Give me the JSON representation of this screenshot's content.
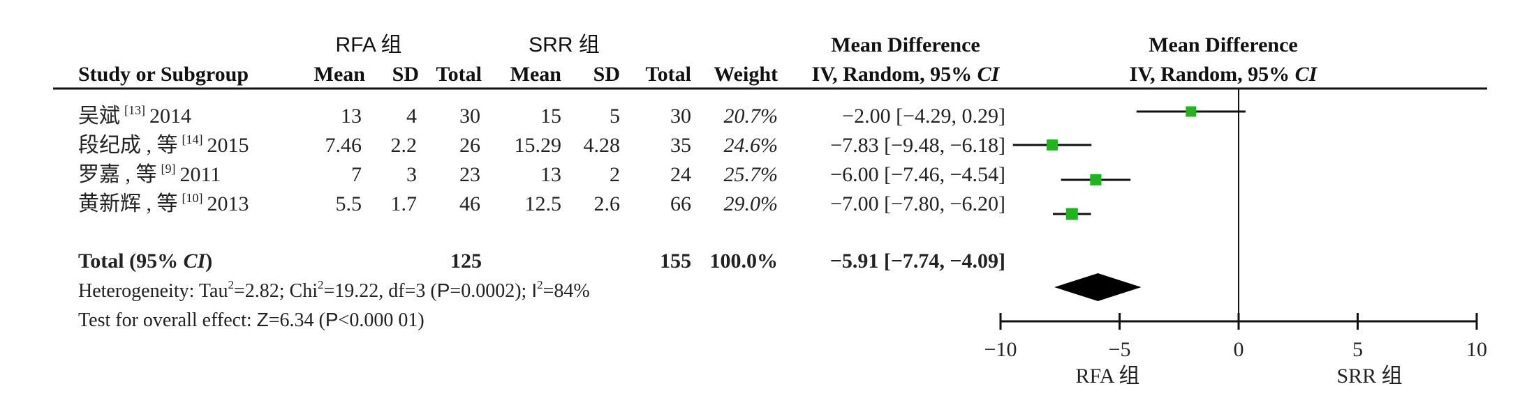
{
  "header": {
    "group1": "RFA 组",
    "group2": "SRR 组",
    "md_title": "Mean Difference",
    "md_sub_a": "IV, Random, 95% ",
    "md_sub_b": "CI",
    "plot_title": "Mean Difference",
    "plot_sub_a": "IV, Random, 95% ",
    "plot_sub_b": "CI",
    "study_col": "Study or Subgroup",
    "mean1": "Mean",
    "sd1": "SD",
    "total1": "Total",
    "mean2": "Mean",
    "sd2": "SD",
    "total2": "Total",
    "weight": "Weight"
  },
  "studies": [
    {
      "name": "吴斌",
      "ref": "[13]",
      "year": "2014",
      "mean1": "13",
      "sd1": "4",
      "total1": "30",
      "mean2": "15",
      "sd2": "5",
      "total2": "30",
      "weight": "20.7%",
      "ci_text": "−2.00 [−4.29, 0.29]"
    },
    {
      "name": "段纪成 , 等",
      "ref": "[14]",
      "year": "2015",
      "mean1": "7.46",
      "sd1": "2.2",
      "total1": "26",
      "mean2": "15.29",
      "sd2": "4.28",
      "total2": "35",
      "weight": "24.6%",
      "ci_text": "−7.83 [−9.48, −6.18]"
    },
    {
      "name": "罗嘉 , 等",
      "ref": "[9]",
      "year": "2011",
      "mean1": "7",
      "sd1": "3",
      "total1": "23",
      "mean2": "13",
      "sd2": "2",
      "total2": "24",
      "weight": "25.7%",
      "ci_text": "−6.00 [−7.46, −4.54]"
    },
    {
      "name": "黄新辉 , 等",
      "ref": "[10]",
      "year": "2013",
      "mean1": "5.5",
      "sd1": "1.7",
      "total1": "46",
      "mean2": "12.5",
      "sd2": "2.6",
      "total2": "66",
      "weight": "29.0%",
      "ci_text": "−7.00 [−7.80, −6.20]"
    }
  ],
  "total": {
    "label_a": "Total (95% ",
    "label_b": "CI",
    "label_c": ")",
    "total1": "125",
    "total2": "155",
    "weight": "100.0%",
    "ci_text": "−5.91 [−7.74, −4.09]"
  },
  "heterogeneity": {
    "a": "Heterogeneity: Tau",
    "b": "=2.82; Chi",
    "c": "=19.22, df=3 (",
    "d": "P",
    "e": "=0.0002); ",
    "f": "I",
    "g": "=84%",
    "sup": "2"
  },
  "overall": {
    "a": "Test for overall effect: ",
    "b": "Z",
    "c": "=6.34 (",
    "d": "P",
    "e": "<0.000 01)"
  },
  "chart_data": {
    "type": "scatter",
    "xlim": [
      -10,
      10
    ],
    "xticks": [
      "−10",
      "−5",
      "0",
      "5",
      "10"
    ],
    "xtick_values": [
      -10,
      -5,
      0,
      5,
      10
    ],
    "favours_left": "RFA 组",
    "favours_right": "SRR 组",
    "studies": [
      {
        "md": -2.0,
        "lo": -4.29,
        "hi": 0.29,
        "weight": 20.7
      },
      {
        "md": -7.83,
        "lo": -9.48,
        "hi": -6.18,
        "weight": 24.6
      },
      {
        "md": -6.0,
        "lo": -7.46,
        "hi": -4.54,
        "weight": 25.7
      },
      {
        "md": -7.0,
        "lo": -7.8,
        "hi": -6.2,
        "weight": 29.0
      }
    ],
    "pooled": {
      "md": -5.91,
      "lo": -7.74,
      "hi": -4.09
    },
    "marker_color": "#1db71d",
    "diamond_color": "#000000"
  }
}
